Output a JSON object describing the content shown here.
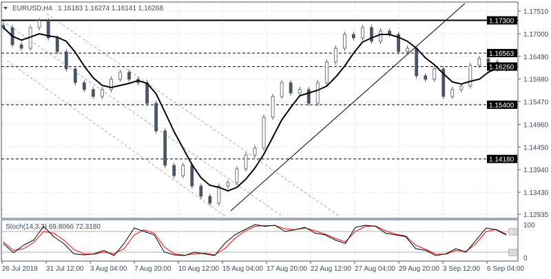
{
  "header": {
    "symbol": "EURUSD,H4",
    "ohlc": "1.16183 1.16274 1.16141 1.16268"
  },
  "chart_data": {
    "type": "candlestick",
    "ylim": [
      1.12935,
      1.1751
    ],
    "y_ticks": [
      "1.17510",
      "1.17000",
      "1.16490",
      "1.15980",
      "1.15470",
      "1.14960",
      "1.14450",
      "1.13940",
      "1.13430",
      "1.12935"
    ],
    "y_tick_values": [
      1.1751,
      1.17,
      1.1649,
      1.1598,
      1.1547,
      1.1496,
      1.1445,
      1.1394,
      1.1343,
      1.12935
    ],
    "x_ticks": [
      "26 Jul 2018",
      "31 Jul 12:00",
      "3 Aug 04:00",
      "7 Aug 20:00",
      "10 Aug 12:00",
      "15 Aug 04:00",
      "17 Aug 20:00",
      "22 Aug 12:00",
      "27 Aug 04:00",
      "29 Aug 20:00",
      "3 Sep 12:00",
      "6 Sep 04:00"
    ],
    "closes": [
      1.17138,
      1.1675,
      1.16672,
      1.17138,
      1.17293,
      1.16905,
      1.16595,
      1.16207,
      1.15897,
      1.15742,
      1.15587,
      1.15742,
      1.15974,
      1.1613,
      1.15974,
      1.15897,
      1.15432,
      1.14811,
      1.14036,
      1.13803,
      1.14036,
      1.1357,
      1.13338,
      1.13183,
      1.1357,
      1.13648,
      1.13958,
      1.14268,
      1.14424,
      1.15121,
      1.15587,
      1.15897,
      1.15664,
      1.15742,
      1.15432,
      1.15897,
      1.16362,
      1.16672,
      1.16983,
      1.16905,
      1.17138,
      1.16828,
      1.1706,
      1.16983,
      1.16595,
      1.16672,
      1.16052,
      1.15974,
      1.16207,
      1.15587,
      1.15742,
      1.15819,
      1.16285,
      1.1644,
      1.16362,
      1.16207,
      1.16268
    ],
    "moving_average": {
      "color": "#000000"
    },
    "levels": [
      {
        "value": 1.173,
        "label": "1.17300",
        "style": "solid"
      },
      {
        "value": 1.16563,
        "label": "1.16563",
        "style": "dashed"
      },
      {
        "value": 1.1626,
        "label": "1.16260",
        "style": "dashed"
      },
      {
        "value": 1.154,
        "label": "1.15400",
        "style": "dashed"
      },
      {
        "value": 1.1418,
        "label": "1.14180",
        "style": "dashed"
      }
    ],
    "colors": {
      "bear": "#4a5566",
      "bull": "#ffffff",
      "outline": "#4a5566",
      "grid": "#e3e3e3"
    },
    "stochastic": {
      "label": "Stoch(14,3,3) 69.8066 72.3180",
      "ylim": [
        0,
        100
      ],
      "levels": [
        "80",
        "20"
      ],
      "axis_labels": [
        "100",
        "0"
      ],
      "k_color": "#000000",
      "d_color": "#ff0000",
      "k": [
        45,
        18,
        40,
        55,
        95,
        65,
        45,
        15,
        12,
        15,
        25,
        10,
        45,
        90,
        80,
        70,
        20,
        12,
        10,
        20,
        15,
        10,
        45,
        70,
        85,
        100,
        95,
        98,
        80,
        85,
        92,
        75,
        70,
        55,
        45,
        92,
        98,
        95,
        75,
        70,
        65,
        30,
        25,
        10,
        15,
        30,
        20,
        55,
        90,
        85,
        70
      ],
      "d": [
        50,
        25,
        30,
        48,
        80,
        75,
        55,
        28,
        15,
        14,
        20,
        15,
        30,
        70,
        85,
        75,
        35,
        15,
        11,
        15,
        17,
        12,
        30,
        60,
        80,
        95,
        97,
        97,
        88,
        85,
        90,
        82,
        72,
        60,
        50,
        80,
        95,
        96,
        82,
        72,
        67,
        40,
        28,
        14,
        14,
        25,
        22,
        45,
        80,
        86,
        72
      ]
    }
  }
}
